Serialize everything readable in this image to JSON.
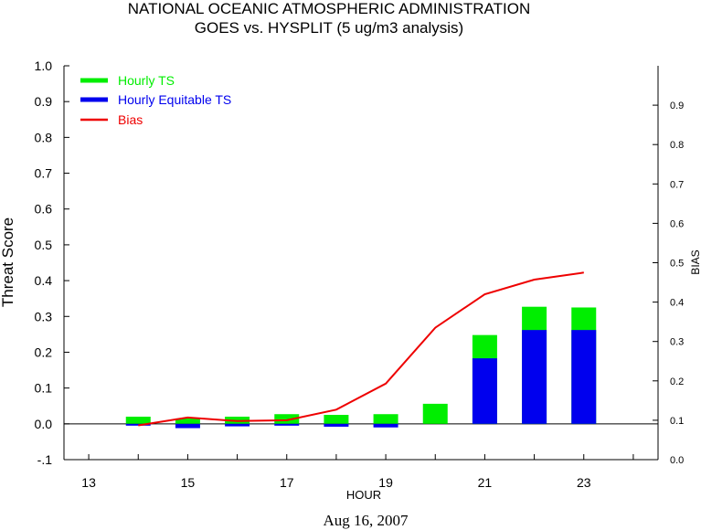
{
  "chart_data": {
    "type": "bar",
    "title": "NATIONAL OCEANIC ATMOSPHERIC ADMINISTRATION",
    "subtitle": "GOES vs. HYSPLIT  (5 ug/m3 analysis)",
    "xlabel": "HOUR",
    "ylabel": "Threat Score",
    "y2label": "BIAS",
    "date_label": "Aug 16, 2007",
    "x": [
      14,
      15,
      16,
      17,
      18,
      19,
      20,
      21,
      22,
      23
    ],
    "xlim": [
      12.5,
      24.5
    ],
    "xticks": [
      13,
      15,
      17,
      19,
      21,
      23
    ],
    "ylim": [
      -0.1,
      1.0
    ],
    "yticks": [
      "-.1",
      "0.0",
      "0.1",
      "0.2",
      "0.3",
      "0.4",
      "0.5",
      "0.6",
      "0.7",
      "0.8",
      "0.9",
      "1.0"
    ],
    "y2lim": [
      0.0,
      1.0
    ],
    "y2ticks": [
      "0.0",
      "0.1",
      "0.2",
      "0.3",
      "0.4",
      "0.5",
      "0.6",
      "0.7",
      "0.8",
      "0.9"
    ],
    "series": [
      {
        "name": "Hourly TS",
        "color": "#00ee00",
        "kind": "bar",
        "values": [
          0.02,
          0.015,
          0.02,
          0.027,
          0.025,
          0.027,
          0.056,
          0.248,
          0.327,
          0.325
        ]
      },
      {
        "name": "Hourly Equitable TS",
        "color": "#0000ee",
        "kind": "bar",
        "values": [
          -0.003,
          -0.012,
          -0.007,
          -0.002,
          -0.008,
          -0.01,
          0.0,
          0.183,
          0.262,
          0.262
        ]
      },
      {
        "name": "Bias",
        "color": "#ee0000",
        "kind": "line",
        "axis": "right",
        "values": [
          0.087,
          0.107,
          0.098,
          0.1,
          0.127,
          0.193,
          0.335,
          0.42,
          0.457,
          0.475
        ]
      }
    ],
    "legend_position": "top-left",
    "grid": false
  }
}
